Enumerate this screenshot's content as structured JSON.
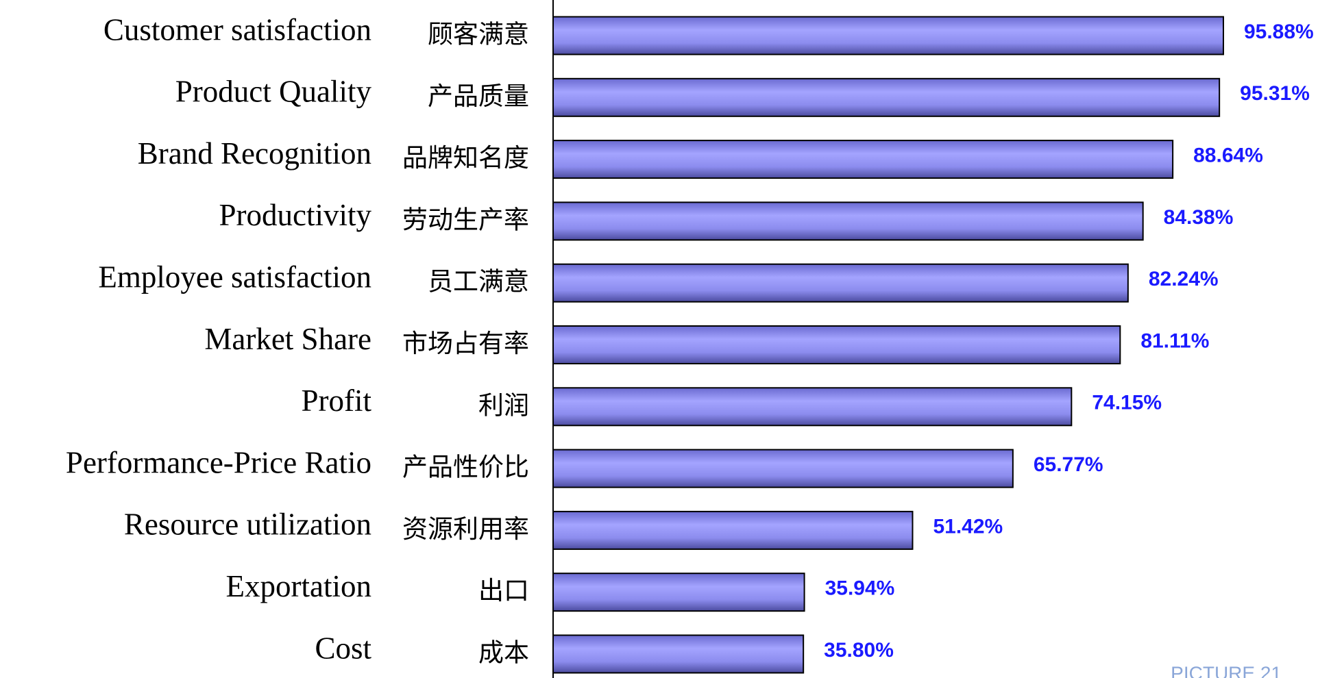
{
  "chart_data": {
    "type": "barh",
    "categories": [
      "Customer satisfaction",
      "Product Quality",
      "Brand Recognition",
      "Productivity",
      "Employee satisfaction",
      "Market Share",
      "Profit",
      "Performance-Price Ratio",
      "Resource utilization",
      "Exportation",
      "Cost"
    ],
    "categories_zh": [
      "顾客满意",
      "产品质量",
      "品牌知名度",
      "劳动生产率",
      "员工满意",
      "市场占有率",
      "利润",
      "产品性价比",
      "资源利用率",
      "出口",
      "成本"
    ],
    "values": [
      95.88,
      95.31,
      88.64,
      84.38,
      82.24,
      81.11,
      74.15,
      65.77,
      51.42,
      35.94,
      35.8
    ],
    "value_labels": [
      "95.88%",
      "95.31%",
      "88.64%",
      "84.38%",
      "82.24%",
      "81.11%",
      "74.15%",
      "65.77%",
      "51.42%",
      "35.94%",
      "35.80%"
    ],
    "color": "#9a9af5",
    "xlim": [
      0,
      100
    ],
    "annotation": "PICTURE 21"
  }
}
